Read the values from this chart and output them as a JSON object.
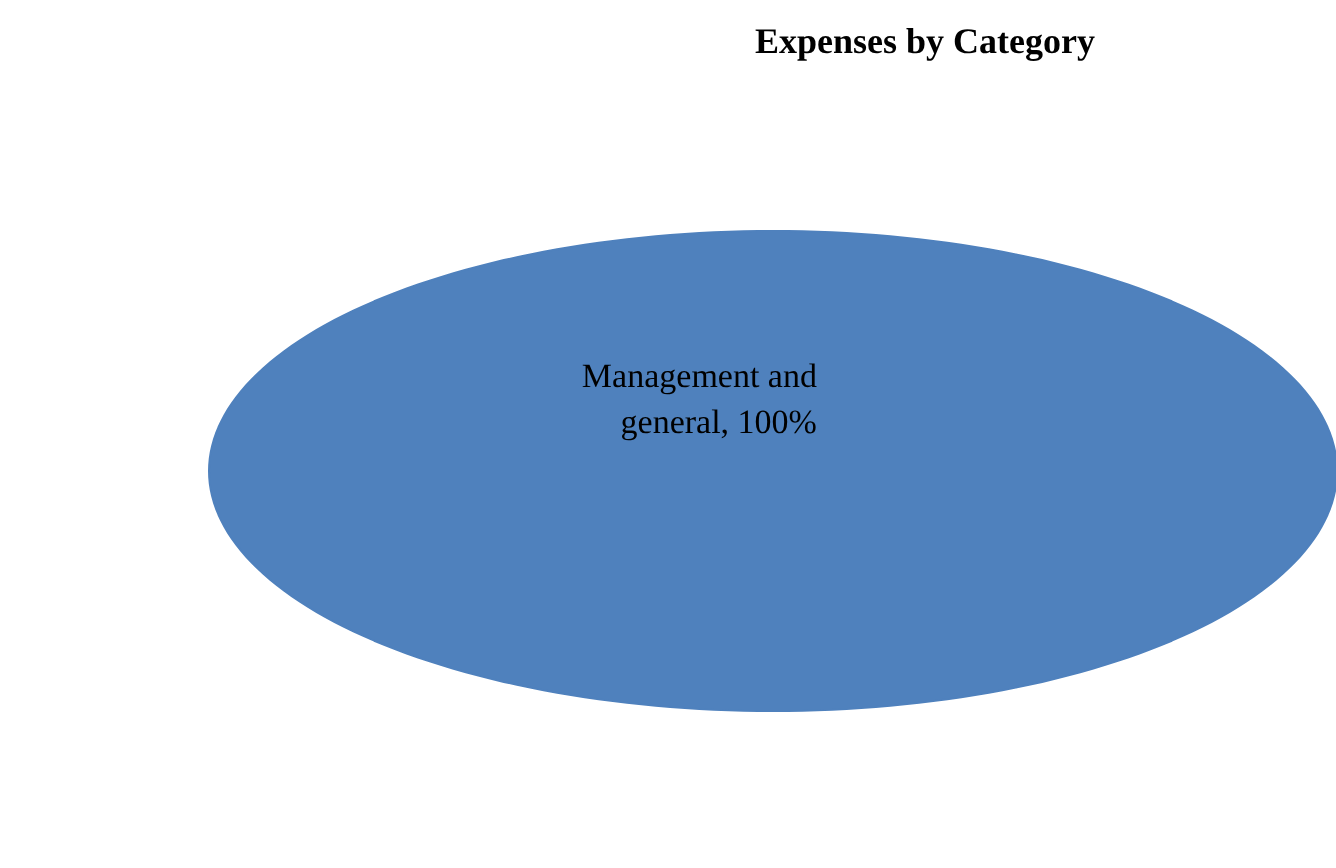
{
  "chart_data": {
    "type": "pie",
    "title": "Expenses by Category",
    "categories": [
      "Management and general"
    ],
    "values": [
      100
    ],
    "value_labels": [
      "100%"
    ],
    "colors": [
      "#4f81bd"
    ]
  }
}
